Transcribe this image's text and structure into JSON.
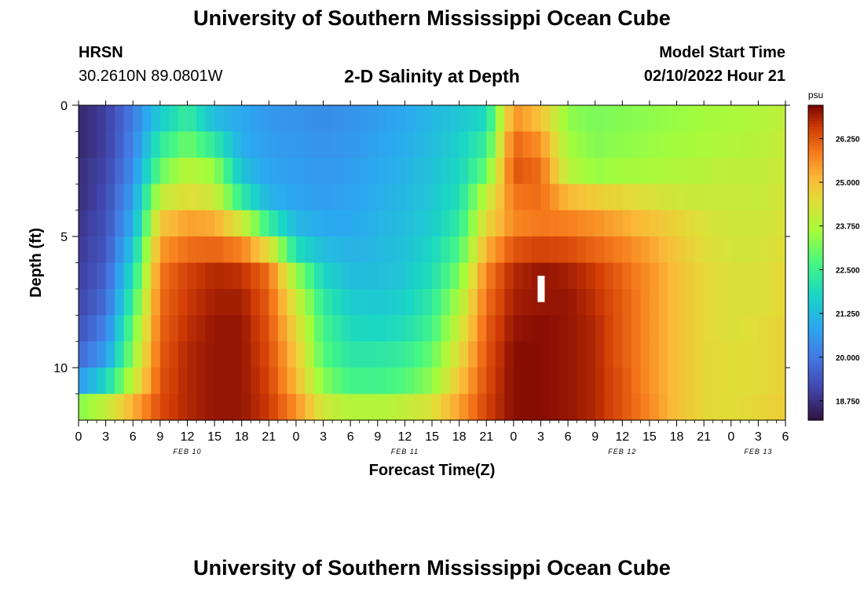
{
  "header": {
    "title": "University of Southern Mississippi Ocean Cube",
    "station": "HRSN",
    "coords": "30.2610N  89.0801W",
    "subtitle": "2-D Salinity at Depth",
    "model_start_label": "Model Start Time",
    "model_start_value": "02/10/2022 Hour 21"
  },
  "footer": {
    "title": "University of Southern Mississippi Ocean Cube"
  },
  "chart_data": {
    "type": "heatmap",
    "title": "2-D Salinity at Depth",
    "xlabel": "Forecast Time(Z)",
    "ylabel": "Depth (ft)",
    "x_hours_range": [
      0,
      78
    ],
    "x_ticks": [
      "0",
      "3",
      "6",
      "9",
      "12",
      "15",
      "18",
      "21",
      "0",
      "3",
      "6",
      "9",
      "12",
      "15",
      "18",
      "21",
      "0",
      "3",
      "6",
      "9",
      "12",
      "15",
      "18",
      "21",
      "0",
      "3",
      "6"
    ],
    "date_labels": [
      {
        "label": "FEB 10",
        "hour": 12
      },
      {
        "label": "FEB 11",
        "hour": 36
      },
      {
        "label": "FEB 12",
        "hour": 60
      },
      {
        "label": "FEB 13",
        "hour": 75
      }
    ],
    "y_range": [
      0,
      12
    ],
    "y_ticks": [
      "0",
      "5",
      "10"
    ],
    "depth_levels_ft": [
      0.5,
      1.5,
      2.5,
      3.5,
      4.5,
      5.5,
      6.5,
      7.5,
      8.5,
      9.5,
      10.5,
      11.5
    ],
    "colorbar": {
      "unit": "psu",
      "ticks": [
        "18.750",
        "20.000",
        "21.250",
        "22.500",
        "23.750",
        "25.000",
        "26.250"
      ],
      "range": [
        18.2,
        27.2
      ]
    },
    "time_hours": [
      0,
      3,
      6,
      9,
      12,
      15,
      18,
      21,
      24,
      27,
      30,
      33,
      36,
      39,
      42,
      45,
      48,
      51,
      54,
      57,
      60,
      63,
      66,
      69,
      72,
      75,
      78
    ],
    "salinity": [
      [
        18.6,
        19.0,
        20.1,
        21.6,
        22.4,
        21.3,
        20.9,
        20.6,
        20.5,
        20.4,
        20.5,
        20.7,
        20.9,
        21.2,
        21.5,
        21.9,
        25.6,
        25.0,
        23.4,
        23.2,
        23.3,
        23.4,
        23.5,
        23.6,
        23.7,
        23.8,
        24.0
      ],
      [
        18.6,
        19.0,
        20.2,
        22.3,
        23.1,
        22.3,
        21.0,
        20.7,
        20.6,
        20.5,
        20.6,
        20.8,
        21.0,
        21.3,
        21.7,
        22.4,
        26.1,
        25.6,
        23.6,
        23.3,
        23.4,
        23.5,
        23.6,
        23.7,
        23.8,
        23.9,
        24.1
      ],
      [
        18.7,
        19.1,
        20.4,
        23.0,
        23.9,
        23.5,
        21.4,
        20.8,
        20.7,
        20.6,
        20.7,
        20.9,
        21.1,
        21.4,
        21.8,
        23.0,
        26.3,
        26.0,
        23.9,
        23.5,
        23.6,
        23.7,
        23.8,
        23.9,
        24.0,
        24.0,
        24.2
      ],
      [
        18.7,
        19.2,
        20.7,
        24.0,
        24.5,
        24.2,
        22.3,
        21.1,
        20.8,
        20.7,
        20.8,
        21.0,
        21.2,
        21.5,
        22.0,
        24.0,
        25.9,
        26.0,
        25.1,
        24.8,
        24.6,
        24.4,
        24.2,
        24.1,
        24.1,
        24.1,
        24.3
      ],
      [
        18.8,
        19.3,
        21.0,
        24.9,
        25.4,
        25.3,
        24.2,
        22.4,
        21.2,
        20.9,
        20.9,
        21.1,
        21.3,
        21.6,
        22.3,
        24.6,
        25.7,
        25.9,
        25.8,
        25.6,
        25.3,
        25.0,
        24.7,
        24.4,
        24.2,
        24.2,
        24.4
      ],
      [
        18.9,
        19.4,
        21.5,
        25.5,
        26.0,
        26.1,
        25.8,
        24.5,
        22.0,
        21.3,
        21.1,
        21.2,
        21.4,
        21.8,
        22.7,
        25.2,
        26.3,
        26.5,
        26.4,
        26.1,
        25.8,
        25.4,
        24.9,
        24.5,
        24.3,
        24.3,
        24.5
      ],
      [
        19.0,
        19.6,
        22.0,
        25.9,
        26.5,
        26.8,
        26.7,
        26.0,
        23.5,
        21.8,
        21.3,
        21.3,
        21.5,
        22.0,
        23.2,
        25.8,
        26.8,
        27.0,
        26.9,
        26.6,
        26.1,
        25.6,
        25.0,
        24.6,
        24.4,
        24.4,
        24.6
      ],
      [
        19.1,
        19.8,
        22.5,
        26.0,
        26.6,
        26.9,
        26.9,
        26.2,
        24.2,
        22.3,
        21.6,
        21.5,
        21.7,
        22.3,
        23.7,
        26.0,
        26.9,
        27.0,
        27.0,
        26.7,
        26.2,
        25.6,
        25.0,
        24.6,
        24.4,
        24.4,
        24.6
      ],
      [
        19.3,
        20.2,
        23.0,
        26.1,
        26.7,
        27.0,
        27.0,
        26.3,
        24.6,
        22.6,
        21.9,
        21.8,
        22.0,
        22.6,
        24.1,
        26.2,
        27.0,
        27.1,
        27.0,
        26.8,
        26.2,
        25.6,
        25.0,
        24.6,
        24.4,
        24.5,
        24.7
      ],
      [
        19.7,
        20.7,
        23.4,
        26.2,
        26.8,
        27.0,
        27.0,
        26.4,
        24.9,
        22.8,
        22.2,
        22.2,
        22.4,
        23.0,
        24.5,
        26.3,
        27.1,
        27.1,
        27.0,
        26.8,
        26.2,
        25.6,
        25.0,
        24.6,
        24.5,
        24.5,
        24.7
      ],
      [
        20.6,
        21.8,
        24.0,
        26.3,
        26.8,
        27.0,
        27.0,
        26.5,
        25.1,
        23.3,
        22.6,
        22.6,
        22.8,
        23.4,
        24.9,
        26.4,
        27.1,
        27.1,
        27.0,
        26.8,
        26.3,
        25.6,
        25.0,
        24.6,
        24.5,
        24.5,
        24.7
      ],
      [
        23.3,
        24.0,
        25.2,
        26.4,
        26.8,
        27.0,
        27.0,
        26.6,
        25.6,
        24.2,
        23.8,
        23.8,
        24.0,
        24.4,
        25.4,
        26.5,
        27.1,
        27.1,
        27.0,
        26.8,
        26.3,
        25.7,
        25.0,
        24.6,
        24.5,
        24.6,
        24.8
      ]
    ],
    "missing_cell": {
      "hour": 51,
      "depth_ft": 7.0
    }
  }
}
